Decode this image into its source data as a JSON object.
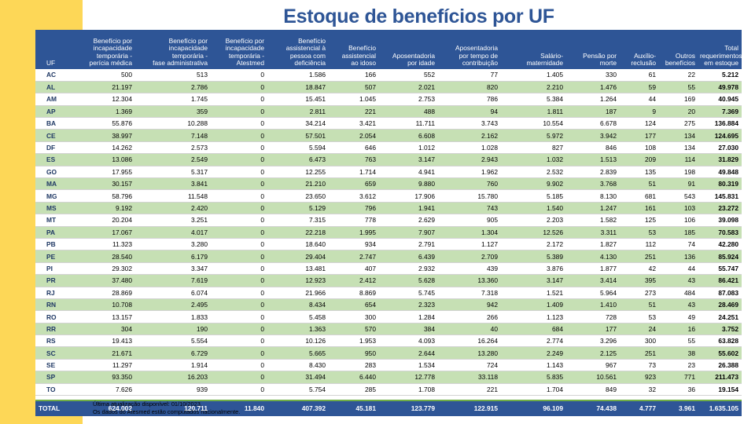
{
  "title": "Estoque de benefícios por UF",
  "columns": [
    {
      "line1": "",
      "line2": "",
      "line3": "",
      "line4": "UF"
    },
    {
      "line1": "Benefício por",
      "line2": "incapacidade",
      "line3": "temporária -",
      "line4": "perícia médica"
    },
    {
      "line1": "Benefício por",
      "line2": "incapacidade",
      "line3": "temporária -",
      "line4": "fase administrativa"
    },
    {
      "line1": "Benefício por",
      "line2": "incapacidade",
      "line3": "temporária -",
      "line4": "Atestmed"
    },
    {
      "line1": "Benefício",
      "line2": "assistencial à",
      "line3": "pessoa com",
      "line4": "deficiência"
    },
    {
      "line1": "",
      "line2": "Benefício",
      "line3": "assistencial",
      "line4": "ao idoso"
    },
    {
      "line1": "",
      "line2": "",
      "line3": "Aposentadoria",
      "line4": "por idade"
    },
    {
      "line1": "",
      "line2": "Aposentadoria",
      "line3": "por tempo de",
      "line4": "contribuição"
    },
    {
      "line1": "",
      "line2": "",
      "line3": "Salário-",
      "line4": "maternidade"
    },
    {
      "line1": "",
      "line2": "",
      "line3": "Pensão por",
      "line4": "morte"
    },
    {
      "line1": "",
      "line2": "",
      "line3": "Auxílio-",
      "line4": "reclusão"
    },
    {
      "line1": "",
      "line2": "",
      "line3": "Outros",
      "line4": "benefícios"
    },
    {
      "line1": "",
      "line2": "Total",
      "line3": "requerimentos",
      "line4": "em estoque"
    }
  ],
  "rows": [
    [
      "AC",
      "500",
      "513",
      "0",
      "1.586",
      "166",
      "552",
      "77",
      "1.405",
      "330",
      "61",
      "22",
      "5.212"
    ],
    [
      "AL",
      "21.197",
      "2.786",
      "0",
      "18.847",
      "507",
      "2.021",
      "820",
      "2.210",
      "1.476",
      "59",
      "55",
      "49.978"
    ],
    [
      "AM",
      "12.304",
      "1.745",
      "0",
      "15.451",
      "1.045",
      "2.753",
      "786",
      "5.384",
      "1.264",
      "44",
      "169",
      "40.945"
    ],
    [
      "AP",
      "1.369",
      "359",
      "0",
      "2.811",
      "221",
      "488",
      "94",
      "1.811",
      "187",
      "9",
      "20",
      "7.369"
    ],
    [
      "BA",
      "55.876",
      "10.288",
      "0",
      "34.214",
      "3.421",
      "11.711",
      "3.743",
      "10.554",
      "6.678",
      "124",
      "275",
      "136.884"
    ],
    [
      "CE",
      "38.997",
      "7.148",
      "0",
      "57.501",
      "2.054",
      "6.608",
      "2.162",
      "5.972",
      "3.942",
      "177",
      "134",
      "124.695"
    ],
    [
      "DF",
      "14.262",
      "2.573",
      "0",
      "5.594",
      "646",
      "1.012",
      "1.028",
      "827",
      "846",
      "108",
      "134",
      "27.030"
    ],
    [
      "ES",
      "13.086",
      "2.549",
      "0",
      "6.473",
      "763",
      "3.147",
      "2.943",
      "1.032",
      "1.513",
      "209",
      "114",
      "31.829"
    ],
    [
      "GO",
      "17.955",
      "5.317",
      "0",
      "12.255",
      "1.714",
      "4.941",
      "1.962",
      "2.532",
      "2.839",
      "135",
      "198",
      "49.848"
    ],
    [
      "MA",
      "30.157",
      "3.841",
      "0",
      "21.210",
      "659",
      "9.880",
      "760",
      "9.902",
      "3.768",
      "51",
      "91",
      "80.319"
    ],
    [
      "MG",
      "58.796",
      "11.548",
      "0",
      "23.650",
      "3.612",
      "17.906",
      "15.780",
      "5.185",
      "8.130",
      "681",
      "543",
      "145.831"
    ],
    [
      "MS",
      "9.192",
      "2.420",
      "0",
      "5.129",
      "796",
      "1.941",
      "743",
      "1.540",
      "1.247",
      "161",
      "103",
      "23.272"
    ],
    [
      "MT",
      "20.204",
      "3.251",
      "0",
      "7.315",
      "778",
      "2.629",
      "905",
      "2.203",
      "1.582",
      "125",
      "106",
      "39.098"
    ],
    [
      "PA",
      "17.067",
      "4.017",
      "0",
      "22.218",
      "1.995",
      "7.907",
      "1.304",
      "12.526",
      "3.311",
      "53",
      "185",
      "70.583"
    ],
    [
      "PB",
      "11.323",
      "3.280",
      "0",
      "18.640",
      "934",
      "2.791",
      "1.127",
      "2.172",
      "1.827",
      "112",
      "74",
      "42.280"
    ],
    [
      "PE",
      "28.540",
      "6.179",
      "0",
      "29.404",
      "2.747",
      "6.439",
      "2.709",
      "5.389",
      "4.130",
      "251",
      "136",
      "85.924"
    ],
    [
      "PI",
      "29.302",
      "3.347",
      "0",
      "13.481",
      "407",
      "2.932",
      "439",
      "3.876",
      "1.877",
      "42",
      "44",
      "55.747"
    ],
    [
      "PR",
      "37.480",
      "7.619",
      "0",
      "12.923",
      "2.412",
      "5.628",
      "13.360",
      "3.147",
      "3.414",
      "395",
      "43",
      "86.421"
    ],
    [
      "RJ",
      "28.869",
      "6.074",
      "0",
      "21.966",
      "8.869",
      "5.745",
      "7.318",
      "1.521",
      "5.964",
      "273",
      "484",
      "87.083"
    ],
    [
      "RN",
      "10.708",
      "2.495",
      "0",
      "8.434",
      "654",
      "2.323",
      "942",
      "1.409",
      "1.410",
      "51",
      "43",
      "28.469"
    ],
    [
      "RO",
      "13.157",
      "1.833",
      "0",
      "5.458",
      "300",
      "1.284",
      "266",
      "1.123",
      "728",
      "53",
      "49",
      "24.251"
    ],
    [
      "RR",
      "304",
      "190",
      "0",
      "1.363",
      "570",
      "384",
      "40",
      "684",
      "177",
      "24",
      "16",
      "3.752"
    ],
    [
      "RS",
      "19.413",
      "5.554",
      "0",
      "10.126",
      "1.953",
      "4.093",
      "16.264",
      "2.774",
      "3.296",
      "300",
      "55",
      "63.828"
    ],
    [
      "SC",
      "21.671",
      "6.729",
      "0",
      "5.665",
      "950",
      "2.644",
      "13.280",
      "2.249",
      "2.125",
      "251",
      "38",
      "55.602"
    ],
    [
      "SE",
      "11.297",
      "1.914",
      "0",
      "8.430",
      "283",
      "1.534",
      "724",
      "1.143",
      "967",
      "73",
      "23",
      "26.388"
    ],
    [
      "SP",
      "93.350",
      "16.203",
      "0",
      "31.494",
      "6.440",
      "12.778",
      "33.118",
      "5.835",
      "10.561",
      "923",
      "771",
      "211.473"
    ],
    [
      "TO",
      "7.626",
      "939",
      "0",
      "5.754",
      "285",
      "1.708",
      "221",
      "1.704",
      "849",
      "32",
      "36",
      "19.154"
    ]
  ],
  "total_row": [
    "TOTAL",
    "624.002",
    "120.711",
    "11.840",
    "407.392",
    "45.181",
    "123.779",
    "122.915",
    "96.109",
    "74.438",
    "4.777",
    "3.961",
    "1.635.105"
  ],
  "notes": {
    "line1": "Última atualização disponível:  01/10/2023.",
    "line2": "Os dados do Atesmed estão computados nacionalmente."
  },
  "colors": {
    "header": "#2e5596",
    "stripe": "#c6e0b4",
    "accent": "#fdd757",
    "title": "#2e5596"
  }
}
